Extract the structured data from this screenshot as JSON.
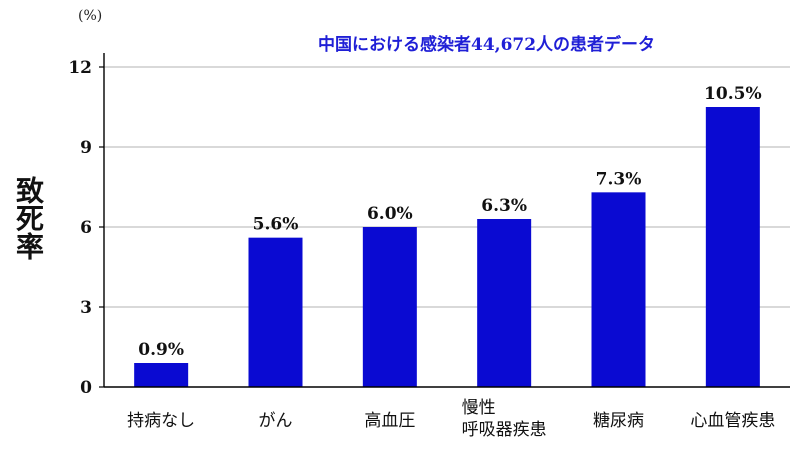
{
  "chart_data": {
    "type": "bar",
    "title": "中国における感染者44,672人の患者データ",
    "ylabel": "致死率",
    "unit": "(%)",
    "categories": [
      "持病なし",
      "がん",
      "高血圧",
      "慢性\n呼吸器疾患",
      "糖尿病",
      "心血管疾患"
    ],
    "values": [
      0.9,
      5.6,
      6.0,
      6.3,
      7.3,
      10.5
    ],
    "data_labels": [
      "0.9%",
      "5.6%",
      "6.0%",
      "6.3%",
      "7.3%",
      "10.5%"
    ],
    "ylim": [
      0,
      12
    ],
    "yticks": [
      0,
      3,
      6,
      9,
      12
    ],
    "grid": true,
    "bar_color": "#0a0ad2",
    "title_color": "#1f1fd6",
    "grid_color": "#b3b3b3"
  }
}
